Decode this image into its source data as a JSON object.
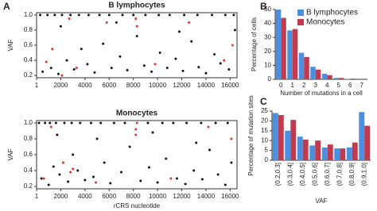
{
  "panels": [
    "A",
    "B",
    "C"
  ],
  "chart_data": [
    {
      "type": "scatter",
      "title": "B lymphocytes",
      "ylabel": "VAF",
      "xlim": [
        0,
        16569
      ],
      "ylim": [
        0.17,
        1.03
      ],
      "xticks": [
        1,
        2000,
        4000,
        6000,
        8000,
        10000,
        12000,
        14000,
        16000
      ],
      "yticks": [
        0.2,
        0.4,
        0.6,
        0.8,
        {
          "value": 1,
          "label": "1.0"
        }
      ],
      "series": [
        {
          "color": "#111111",
          "x": [
            300,
            900,
            1500,
            2100,
            2800,
            3500,
            4300,
            5200,
            6000,
            7100,
            8000,
            9000,
            10100,
            11000,
            12200,
            13300,
            14500,
            15600,
            16300,
            500,
            1200,
            1800,
            2500,
            3100,
            3700,
            4200,
            4800,
            5500,
            6200,
            6900,
            7500,
            8300,
            8900,
            9500,
            10200,
            10800,
            11500,
            12100,
            12800,
            13400,
            14000,
            14700,
            15200,
            15900,
            16400,
            2000,
            6600,
            11800
          ],
          "values": [
            1,
            1,
            1,
            1,
            1,
            1,
            1,
            1,
            1,
            1,
            1,
            1,
            1,
            1,
            1,
            1,
            1,
            1,
            1,
            0.25,
            0.3,
            0.22,
            0.4,
            0.28,
            0.55,
            0.35,
            0.24,
            0.62,
            0.3,
            0.45,
            0.27,
            0.72,
            0.33,
            0.25,
            0.5,
            0.3,
            0.42,
            0.26,
            0.65,
            0.31,
            0.23,
            0.48,
            0.36,
            0.28,
            0.8,
            0.85,
            0.9,
            0.78
          ]
        },
        {
          "color": "#e0352b",
          "x": [
            800,
            1300,
            2100,
            2700,
            3300,
            5800,
            8200,
            8300,
            9800,
            12600,
            15500,
            16200
          ],
          "values": [
            0.38,
            0.55,
            0.2,
            0.95,
            0.3,
            0.9,
            0.95,
            0.85,
            0.35,
            0.9,
            0.4,
            0.6
          ]
        }
      ]
    },
    {
      "type": "scatter",
      "title": "Monocytes",
      "ylabel": "VAF",
      "xlabel": "rCRS nucleotide",
      "xlim": [
        0,
        16569
      ],
      "ylim": [
        0.17,
        1.03
      ],
      "xticks": [
        1,
        2000,
        4000,
        6000,
        8000,
        10000,
        12000,
        14000,
        16000
      ],
      "yticks": [
        0.2,
        0.4,
        0.6,
        0.8,
        {
          "value": 1,
          "label": "1.0"
        }
      ],
      "series": [
        {
          "color": "#111111",
          "x": [
            200,
            700,
            1100,
            1600,
            2300,
            2900,
            3600,
            4500,
            5300,
            6400,
            7300,
            9200,
            10400,
            11300,
            12400,
            13600,
            14800,
            15800,
            400,
            1000,
            1400,
            1900,
            2600,
            3000,
            3400,
            4000,
            4700,
            5600,
            6100,
            7000,
            7700,
            8600,
            9300,
            10000,
            10700,
            11600,
            12300,
            13000,
            13700,
            14300,
            15000,
            15600,
            16100,
            1700,
            5000,
            9600,
            13200
          ],
          "values": [
            1,
            1,
            1,
            1,
            1,
            1,
            1,
            1,
            1,
            1,
            1,
            1,
            1,
            1,
            1,
            1,
            1,
            1,
            0.3,
            0.22,
            0.45,
            0.35,
            0.26,
            0.6,
            0.4,
            0.28,
            0.32,
            0.5,
            0.24,
            0.38,
            0.7,
            0.27,
            0.44,
            0.25,
            0.55,
            0.3,
            0.23,
            0.4,
            0.29,
            0.66,
            0.35,
            0.22,
            0.5,
            0.85,
            0.8,
            0.88,
            0.75
          ]
        },
        {
          "color": "#e0352b",
          "x": [
            600,
            1200,
            2200,
            2800,
            3000,
            4900,
            8200,
            8200,
            8300,
            11100,
            14200,
            16100
          ],
          "values": [
            0.3,
            0.95,
            0.5,
            0.38,
            0.42,
            0.25,
            0.85,
            0.92,
            1,
            0.3,
            0.95,
            0.8
          ]
        }
      ]
    },
    {
      "type": "bar",
      "ylabel": "Percentage of cells",
      "xlabel": "Number of mutations in a cell",
      "legend": "upper right",
      "categories": [
        "0",
        "1",
        "2",
        "3",
        "4",
        "5",
        "6",
        "7"
      ],
      "ylim": [
        0,
        50
      ],
      "yticks": [
        0,
        10,
        20,
        30,
        40,
        50
      ],
      "series": [
        {
          "name": "B lymphocytes",
          "color": "#4a8fe0",
          "values": [
            50,
            35,
            19,
            9,
            4,
            1,
            0.3,
            0
          ]
        },
        {
          "name": "Monocytes",
          "color": "#c23a4e",
          "values": [
            44,
            36,
            16,
            7,
            3,
            1,
            0.5,
            0
          ]
        }
      ]
    },
    {
      "type": "bar",
      "ylabel": "Percentage of mutation sites",
      "xlabel": "VAF",
      "rotate_labels": true,
      "categories": [
        "(0.2,0.3]",
        "(0.3,0.4]",
        "(0.4,0.5]",
        "(0.5,0.6]",
        "(0.6,0.7]",
        "(0.7,0.8]",
        "(0.8,0.9]",
        "(0.9,1.0]"
      ],
      "ylim": [
        0,
        25
      ],
      "yticks": [
        0,
        5,
        10,
        15,
        20,
        25
      ],
      "series": [
        {
          "name": "B lymphocytes",
          "color": "#4a8fe0",
          "values": [
            24,
            15,
            12,
            7.5,
            6.5,
            6,
            6.5,
            24.5
          ]
        },
        {
          "name": "Monocytes",
          "color": "#c23a4e",
          "values": [
            23,
            20.5,
            10.5,
            10,
            8,
            6,
            9,
            17.5
          ]
        }
      ]
    }
  ]
}
